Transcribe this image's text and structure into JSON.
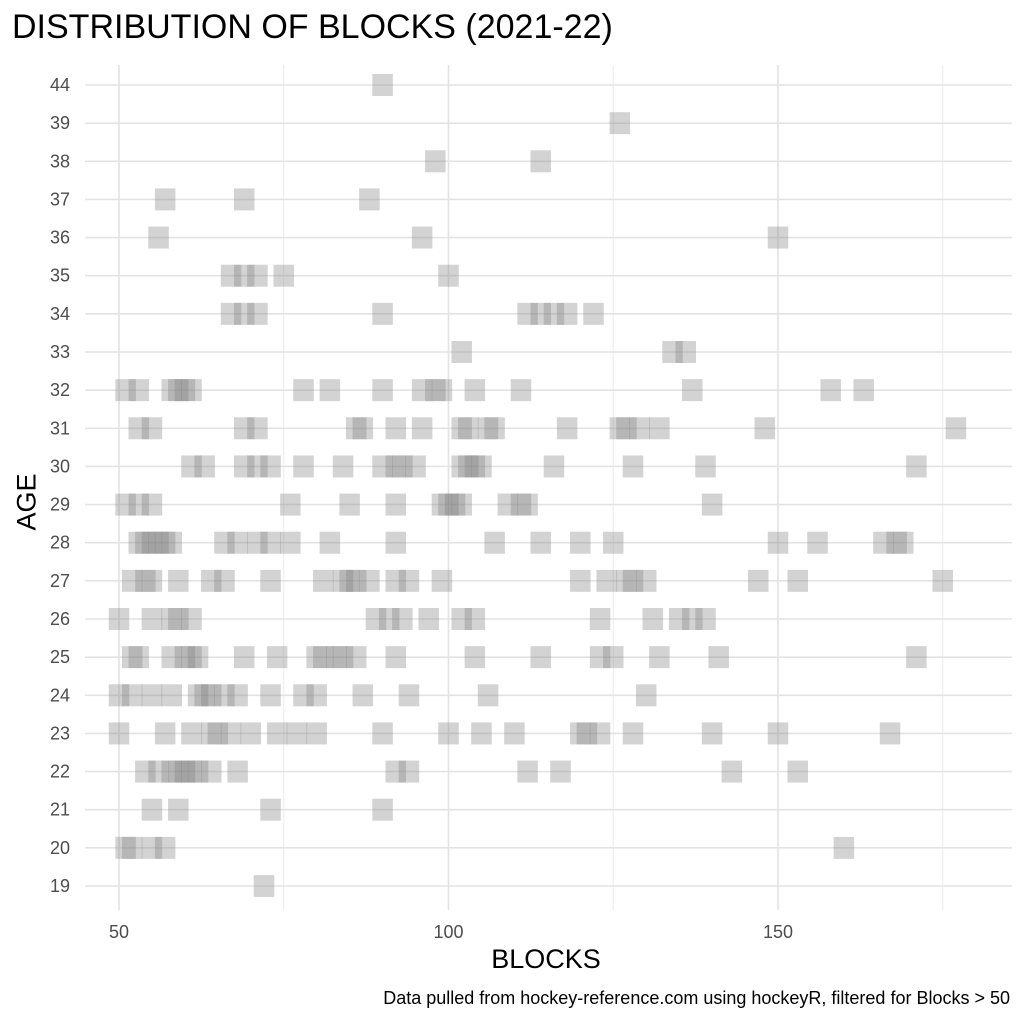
{
  "chart_data": {
    "type": "scatter",
    "title": "DISTRIBUTION OF BLOCKS (2021-22)",
    "xlabel": "BLOCKS",
    "ylabel": "AGE",
    "caption": "Data pulled from hockey-reference.com using hockeyR, filtered for Blocks > 50",
    "xlim": [
      49,
      182
    ],
    "x_ticks": [
      50,
      100,
      150
    ],
    "y_categories": [
      "19",
      "20",
      "21",
      "22",
      "23",
      "24",
      "25",
      "26",
      "27",
      "28",
      "29",
      "30",
      "31",
      "32",
      "33",
      "34",
      "35",
      "36",
      "37",
      "38",
      "39",
      "44"
    ],
    "grid": true,
    "marker": "square",
    "marker_color": "#808080",
    "marker_opacity": 0.35,
    "points": [
      {
        "age": "44",
        "x": [
          90
        ]
      },
      {
        "age": "39",
        "x": [
          126
        ]
      },
      {
        "age": "38",
        "x": [
          98,
          114
        ]
      },
      {
        "age": "37",
        "x": [
          57,
          69,
          88
        ]
      },
      {
        "age": "36",
        "x": [
          56,
          96,
          150
        ]
      },
      {
        "age": "35",
        "x": [
          67,
          69,
          71,
          75,
          100
        ]
      },
      {
        "age": "34",
        "x": [
          67,
          69,
          71,
          90,
          112,
          114,
          116,
          118,
          122
        ]
      },
      {
        "age": "33",
        "x": [
          102,
          134,
          136
        ]
      },
      {
        "age": "32",
        "x": [
          51,
          53,
          58,
          59,
          60,
          61,
          78,
          82,
          90,
          96,
          98,
          99,
          104,
          111,
          137,
          158,
          163
        ]
      },
      {
        "age": "31",
        "x": [
          53,
          55,
          69,
          71,
          86,
          87,
          92,
          96,
          102,
          103,
          106,
          107,
          118,
          126,
          127,
          129,
          132,
          148,
          177
        ]
      },
      {
        "age": "30",
        "x": [
          61,
          63,
          69,
          71,
          73,
          78,
          84,
          90,
          92,
          93,
          95,
          102,
          103,
          104,
          105,
          116,
          128,
          139,
          171
        ]
      },
      {
        "age": "29",
        "x": [
          51,
          53,
          55,
          76,
          85,
          92,
          99,
          100,
          101,
          102,
          109,
          111,
          112,
          140
        ]
      },
      {
        "age": "28",
        "x": [
          53,
          54,
          55,
          56,
          57,
          58,
          66,
          68,
          71,
          73,
          76,
          82,
          92,
          107,
          114,
          120,
          125,
          150,
          156,
          166,
          168,
          169
        ]
      },
      {
        "age": "27",
        "x": [
          52,
          54,
          55,
          59,
          64,
          66,
          73,
          81,
          84,
          85,
          86,
          88,
          92,
          94,
          99,
          120,
          124,
          127,
          128,
          130,
          147,
          153,
          175
        ]
      },
      {
        "age": "26",
        "x": [
          50,
          55,
          58,
          59,
          61,
          89,
          91,
          93,
          97,
          102,
          104,
          123,
          131,
          135,
          137,
          139
        ]
      },
      {
        "age": "25",
        "x": [
          52,
          53,
          58,
          60,
          61,
          62,
          69,
          74,
          80,
          81,
          83,
          84,
          86,
          92,
          104,
          114,
          123,
          125,
          132,
          141,
          171
        ]
      },
      {
        "age": "24",
        "x": [
          50,
          52,
          55,
          58,
          62,
          63,
          64,
          66,
          68,
          73,
          78,
          80,
          87,
          94,
          106,
          130
        ]
      },
      {
        "age": "23",
        "x": [
          50,
          57,
          61,
          64,
          65,
          67,
          70,
          74,
          77,
          80,
          90,
          100,
          105,
          110,
          120,
          121,
          123,
          128,
          140,
          150,
          167
        ]
      },
      {
        "age": "22",
        "x": [
          54,
          56,
          58,
          59,
          60,
          61,
          62,
          64,
          68,
          92,
          94,
          112,
          117,
          143,
          153
        ]
      },
      {
        "age": "21",
        "x": [
          55,
          59,
          73,
          90
        ]
      },
      {
        "age": "20",
        "x": [
          51,
          52,
          55,
          57,
          160
        ]
      },
      {
        "age": "19",
        "x": [
          72
        ]
      }
    ]
  }
}
